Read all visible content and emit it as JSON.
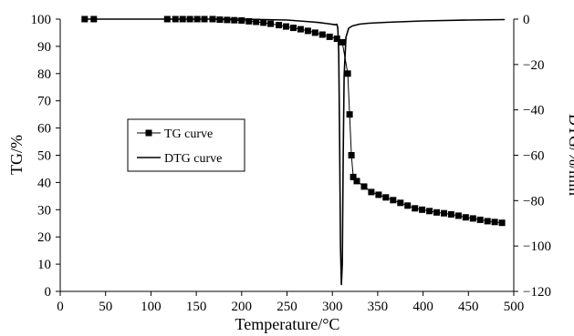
{
  "chart_data": {
    "type": "line",
    "xlabel": "Temperature/°C",
    "ylabel": "TG/%",
    "y2label": "DTG/%/min",
    "xlim": [
      0,
      500
    ],
    "ylim": [
      0,
      100
    ],
    "y2lim": [
      -120,
      0
    ],
    "xticks": [
      0,
      50,
      100,
      150,
      200,
      250,
      300,
      350,
      400,
      450,
      500
    ],
    "yticks": [
      0,
      10,
      20,
      30,
      40,
      50,
      60,
      70,
      80,
      90,
      100
    ],
    "y2ticks": [
      0,
      -20,
      -40,
      -60,
      -80,
      -100,
      -120
    ],
    "grid": false,
    "legend_position": "center-left",
    "series": [
      {
        "name": "TG curve",
        "axis": "left",
        "marker": "square",
        "color": "#000000",
        "x": [
          27,
          37,
          118,
          127,
          135,
          143,
          151,
          159,
          168,
          176,
          184,
          192,
          200,
          208,
          216,
          224,
          232,
          241,
          249,
          257,
          265,
          273,
          281,
          289,
          297,
          305,
          311,
          317,
          319,
          321,
          323,
          327,
          335,
          343,
          351,
          359,
          367,
          375,
          383,
          391,
          399,
          407,
          415,
          423,
          431,
          439,
          447,
          455,
          463,
          471,
          479,
          487
        ],
        "y": [
          100,
          100,
          100,
          100,
          100,
          100,
          100,
          100,
          100,
          99.8,
          99.7,
          99.6,
          99.5,
          99.2,
          99,
          98.7,
          98.3,
          97.8,
          97.3,
          96.8,
          96.3,
          95.7,
          95,
          94.3,
          93.5,
          92.8,
          91.5,
          80,
          65,
          50,
          42,
          40.5,
          38.5,
          36.5,
          35.5,
          34.5,
          33.5,
          32.5,
          31.5,
          30.5,
          30,
          29.5,
          29,
          28.7,
          28.3,
          27.8,
          27.2,
          26.8,
          26.3,
          25.8,
          25.5,
          25.2
        ]
      },
      {
        "name": "DTG curve",
        "axis": "right",
        "marker": "none",
        "color": "#000000",
        "x": [
          27,
          60,
          100,
          150,
          200,
          250,
          270,
          285,
          295,
          300,
          303,
          305,
          306,
          307,
          308,
          309,
          310,
          311,
          312,
          313,
          315,
          318,
          322,
          330,
          340,
          360,
          400,
          450,
          490
        ],
        "y": [
          0,
          0,
          0,
          0,
          0,
          -0.4,
          -1,
          -1.5,
          -2,
          -2.3,
          -2.5,
          -2.3,
          -4,
          -15,
          -55,
          -100,
          -117,
          -108,
          -60,
          -25,
          -8,
          -4,
          -3,
          -2.2,
          -1.8,
          -1.4,
          -0.8,
          -0.4,
          -0.2
        ]
      }
    ]
  }
}
